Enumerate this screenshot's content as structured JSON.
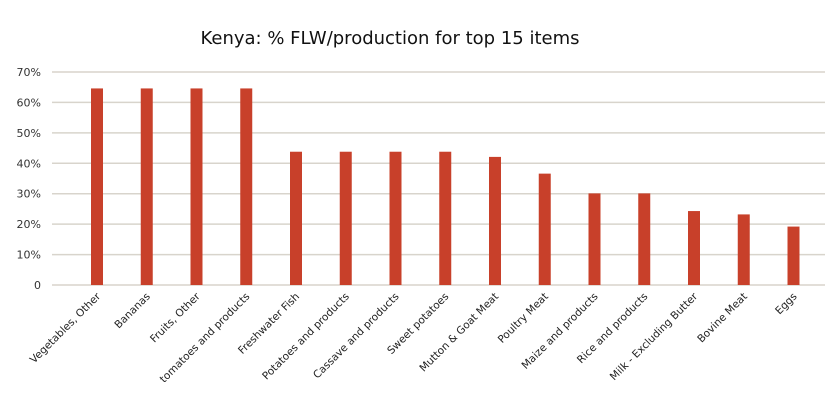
{
  "chart_data": {
    "type": "bar",
    "title": "Kenya: % FLW/production for top 15 items",
    "xlabel": "",
    "ylabel": "",
    "ylim": [
      0,
      70
    ],
    "yticks": [
      0,
      10,
      20,
      30,
      40,
      50,
      60,
      70
    ],
    "ytick_labels": [
      "0",
      "10%",
      "20%",
      "30%",
      "40%",
      "50%",
      "60%",
      "70%"
    ],
    "grid": true,
    "legend": "none",
    "bar_color": "#c8402a",
    "grid_color": "#d8d4cc",
    "categories": [
      "Vegetables, Other",
      "Bananas",
      "Fruits, Other",
      "tomatoes and products",
      "Freshwater Fish",
      "Potatoes and products",
      "Cassave and products",
      "Sweet potatoes",
      "Mutton & Goat Meat",
      "Poultry Meat",
      "Maize and products",
      "Rice and products",
      "Milk - Excluding Butter",
      "Bovine Meat",
      "Eggs"
    ],
    "values": [
      64.6,
      64.6,
      64.6,
      64.6,
      43.8,
      43.8,
      43.8,
      43.8,
      42.1,
      36.6,
      30.1,
      30.1,
      24.3,
      23.2,
      19.2
    ]
  }
}
